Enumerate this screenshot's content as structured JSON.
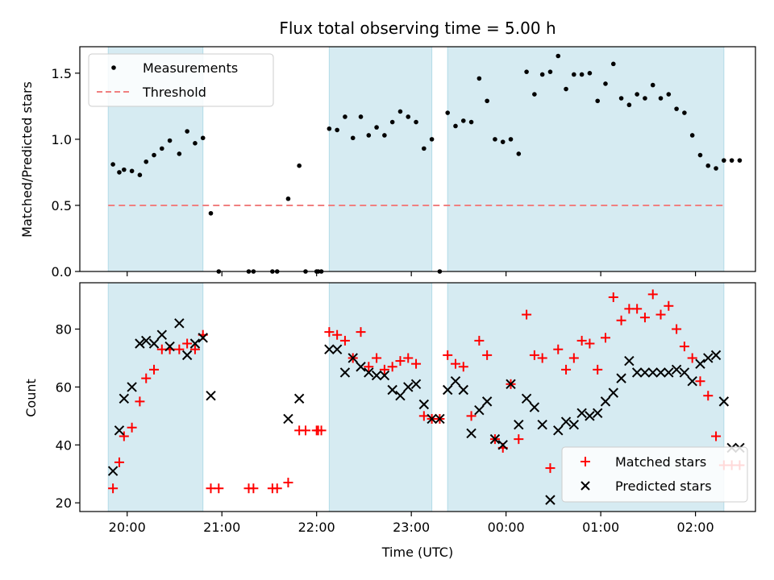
{
  "chart_data": [
    {
      "type": "scatter",
      "title": "Flux total observing time = 5.00 h",
      "xlabel": "",
      "ylabel": "Matched/Predicted stars",
      "xlim": [
        "19:30",
        "02:38"
      ],
      "ylim": [
        0,
        1.7
      ],
      "yticks": [
        0.0,
        0.5,
        1.0,
        1.5
      ],
      "ytick_labels": [
        "0.0",
        "0.5",
        "1.0",
        "1.5"
      ],
      "xticks": [
        "20:00",
        "21:00",
        "22:00",
        "23:00",
        "00:00",
        "01:00",
        "02:00"
      ],
      "shaded_intervals": [
        [
          "19:48",
          "20:48"
        ],
        [
          "22:08",
          "23:13"
        ],
        [
          "23:23",
          "02:18"
        ]
      ],
      "legend": {
        "position": "top-left",
        "entries": [
          "Measurements",
          "Threshold"
        ]
      },
      "threshold": {
        "name": "Threshold",
        "value": 0.5,
        "color": "#f08080",
        "style": "dashed"
      },
      "series": [
        {
          "name": "Measurements",
          "color": "#000000",
          "marker": "dot",
          "x": [
            "19:51",
            "19:55",
            "19:58",
            "20:03",
            "20:08",
            "20:12",
            "20:17",
            "20:22",
            "20:27",
            "20:33",
            "20:38",
            "20:43",
            "20:48",
            "20:53",
            "20:58",
            "21:17",
            "21:20",
            "21:32",
            "21:35",
            "21:42",
            "21:49",
            "21:53",
            "22:00",
            "22:01",
            "22:03",
            "22:08",
            "22:13",
            "22:18",
            "22:23",
            "22:28",
            "22:33",
            "22:38",
            "22:43",
            "22:48",
            "22:53",
            "22:58",
            "23:03",
            "23:08",
            "23:13",
            "23:18",
            "23:23",
            "23:28",
            "23:33",
            "23:38",
            "23:43",
            "23:48",
            "23:53",
            "23:58",
            "00:03",
            "00:08",
            "00:13",
            "00:18",
            "00:23",
            "00:28",
            "00:33",
            "00:38",
            "00:43",
            "00:48",
            "00:53",
            "00:58",
            "01:03",
            "01:08",
            "01:13",
            "01:18",
            "01:23",
            "01:28",
            "01:33",
            "01:38",
            "01:43",
            "01:48",
            "01:53",
            "01:58",
            "02:03",
            "02:08",
            "02:13",
            "02:18",
            "02:23",
            "02:28"
          ],
          "y": [
            0.81,
            0.75,
            0.77,
            0.76,
            0.73,
            0.83,
            0.88,
            0.93,
            0.99,
            0.89,
            1.06,
            0.97,
            1.01,
            0.44,
            0.0,
            0.0,
            0.0,
            0.0,
            0.0,
            0.55,
            0.8,
            0.0,
            0.0,
            0.0,
            0.0,
            1.08,
            1.07,
            1.17,
            1.01,
            1.17,
            1.03,
            1.09,
            1.03,
            1.13,
            1.21,
            1.17,
            1.13,
            0.93,
            1.0,
            0.0,
            1.2,
            1.1,
            1.14,
            1.13,
            1.46,
            1.29,
            1.0,
            0.98,
            1.0,
            0.89,
            1.51,
            1.34,
            1.49,
            1.51,
            1.63,
            1.38,
            1.49,
            1.49,
            1.5,
            1.29,
            1.42,
            1.57,
            1.31,
            1.26,
            1.34,
            1.31,
            1.41,
            1.31,
            1.34,
            1.23,
            1.2,
            1.03,
            0.88,
            0.8,
            0.78,
            0.84,
            0.84,
            0.84
          ]
        }
      ]
    },
    {
      "type": "scatter",
      "title": "",
      "xlabel": "Time (UTC)",
      "ylabel": "Count",
      "xlim": [
        "19:30",
        "02:38"
      ],
      "ylim": [
        17,
        96
      ],
      "yticks": [
        20,
        40,
        60,
        80
      ],
      "ytick_labels": [
        "20",
        "40",
        "60",
        "80"
      ],
      "xticks": [
        "20:00",
        "21:00",
        "22:00",
        "23:00",
        "00:00",
        "01:00",
        "02:00"
      ],
      "shaded_intervals": [
        [
          "19:48",
          "20:48"
        ],
        [
          "22:08",
          "23:13"
        ],
        [
          "23:23",
          "02:18"
        ]
      ],
      "legend": {
        "position": "lower-right",
        "entries": [
          "Matched stars",
          "Predicted stars"
        ]
      },
      "series": [
        {
          "name": "Matched stars",
          "color": "#ff0000",
          "marker": "plus",
          "x": [
            "19:51",
            "19:55",
            "19:58",
            "20:03",
            "20:08",
            "20:12",
            "20:17",
            "20:22",
            "20:27",
            "20:33",
            "20:38",
            "20:43",
            "20:48",
            "20:53",
            "20:58",
            "21:17",
            "21:20",
            "21:32",
            "21:35",
            "21:42",
            "21:49",
            "21:53",
            "22:00",
            "22:01",
            "22:03",
            "22:08",
            "22:13",
            "22:18",
            "22:23",
            "22:28",
            "22:33",
            "22:38",
            "22:43",
            "22:48",
            "22:53",
            "22:58",
            "23:03",
            "23:08",
            "23:13",
            "23:18",
            "23:23",
            "23:28",
            "23:33",
            "23:38",
            "23:43",
            "23:48",
            "23:53",
            "23:58",
            "00:03",
            "00:08",
            "00:13",
            "00:18",
            "00:23",
            "00:28",
            "00:33",
            "00:38",
            "00:43",
            "00:48",
            "00:53",
            "00:58",
            "01:03",
            "01:08",
            "01:13",
            "01:18",
            "01:23",
            "01:28",
            "01:33",
            "01:38",
            "01:43",
            "01:48",
            "01:53",
            "01:58",
            "02:03",
            "02:08",
            "02:13",
            "02:18",
            "02:23",
            "02:28"
          ],
          "y": [
            25,
            34,
            43,
            46,
            55,
            63,
            66,
            73,
            73,
            73,
            75,
            73,
            78,
            25,
            25,
            25,
            25,
            25,
            25,
            27,
            45,
            45,
            45,
            45,
            45,
            79,
            78,
            76,
            70,
            79,
            67,
            70,
            66,
            67,
            69,
            70,
            68,
            50,
            49,
            49,
            71,
            68,
            67,
            50,
            76,
            71,
            42,
            39,
            61,
            42,
            85,
            71,
            70,
            32,
            73,
            66,
            70,
            76,
            75,
            66,
            77,
            91,
            83,
            87,
            87,
            84,
            92,
            85,
            88,
            80,
            74,
            70,
            62,
            57,
            43,
            33,
            33,
            33
          ]
        },
        {
          "name": "Predicted stars",
          "color": "#000000",
          "marker": "x",
          "x": [
            "19:51",
            "19:55",
            "19:58",
            "20:03",
            "20:08",
            "20:12",
            "20:17",
            "20:22",
            "20:27",
            "20:33",
            "20:38",
            "20:43",
            "20:48",
            "20:53",
            "21:42",
            "21:49",
            "22:08",
            "22:13",
            "22:18",
            "22:23",
            "22:28",
            "22:33",
            "22:38",
            "22:43",
            "22:48",
            "22:53",
            "22:58",
            "23:03",
            "23:08",
            "23:13",
            "23:18",
            "23:23",
            "23:28",
            "23:33",
            "23:38",
            "23:43",
            "23:48",
            "23:53",
            "23:58",
            "00:03",
            "00:08",
            "00:13",
            "00:18",
            "00:23",
            "00:28",
            "00:33",
            "00:38",
            "00:43",
            "00:48",
            "00:53",
            "00:58",
            "01:03",
            "01:08",
            "01:13",
            "01:18",
            "01:23",
            "01:28",
            "01:33",
            "01:38",
            "01:43",
            "01:48",
            "01:53",
            "01:58",
            "02:03",
            "02:08",
            "02:13",
            "02:18",
            "02:23",
            "02:28"
          ],
          "y": [
            31,
            45,
            56,
            60,
            75,
            76,
            75,
            78,
            74,
            82,
            71,
            75,
            77,
            57,
            49,
            56,
            73,
            73,
            65,
            70,
            67,
            65,
            64,
            64,
            59,
            57,
            60,
            61,
            54,
            49,
            49,
            59,
            62,
            59,
            44,
            52,
            55,
            42,
            40,
            61,
            47,
            56,
            53,
            47,
            21,
            45,
            48,
            47,
            51,
            50,
            51,
            55,
            58,
            63,
            69,
            65,
            65,
            65,
            65,
            65,
            66,
            65,
            62,
            68,
            70,
            71,
            55,
            39,
            39
          ]
        }
      ]
    }
  ]
}
